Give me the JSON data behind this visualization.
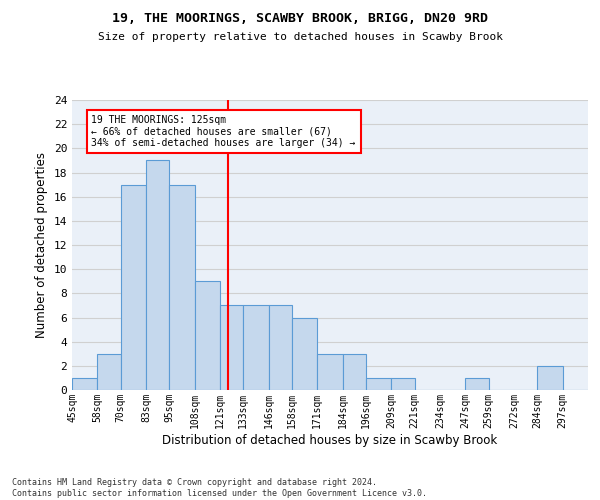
{
  "title1": "19, THE MOORINGS, SCAWBY BROOK, BRIGG, DN20 9RD",
  "title2": "Size of property relative to detached houses in Scawby Brook",
  "xlabel": "Distribution of detached houses by size in Scawby Brook",
  "ylabel": "Number of detached properties",
  "bin_labels": [
    "45sqm",
    "58sqm",
    "70sqm",
    "83sqm",
    "95sqm",
    "108sqm",
    "121sqm",
    "133sqm",
    "146sqm",
    "158sqm",
    "171sqm",
    "184sqm",
    "196sqm",
    "209sqm",
    "221sqm",
    "234sqm",
    "247sqm",
    "259sqm",
    "272sqm",
    "284sqm",
    "297sqm"
  ],
  "bar_values": [
    1,
    3,
    17,
    19,
    17,
    9,
    7,
    7,
    7,
    6,
    3,
    3,
    1,
    1,
    0,
    0,
    1,
    0,
    0,
    2,
    0
  ],
  "bar_color": "#c5d8ed",
  "bar_edgecolor": "#5b9bd5",
  "reference_line_x": 125,
  "bin_edges": [
    45,
    58,
    70,
    83,
    95,
    108,
    121,
    133,
    146,
    158,
    171,
    184,
    196,
    209,
    221,
    234,
    247,
    259,
    272,
    284,
    297,
    310
  ],
  "annotation_text": "19 THE MOORINGS: 125sqm\n← 66% of detached houses are smaller (67)\n34% of semi-detached houses are larger (34) →",
  "annotation_box_color": "white",
  "annotation_box_edgecolor": "red",
  "vline_color": "red",
  "ylim": [
    0,
    24
  ],
  "yticks": [
    0,
    2,
    4,
    6,
    8,
    10,
    12,
    14,
    16,
    18,
    20,
    22,
    24
  ],
  "grid_color": "#d0d0d0",
  "bg_color": "#eaf0f8",
  "footnote": "Contains HM Land Registry data © Crown copyright and database right 2024.\nContains public sector information licensed under the Open Government Licence v3.0."
}
